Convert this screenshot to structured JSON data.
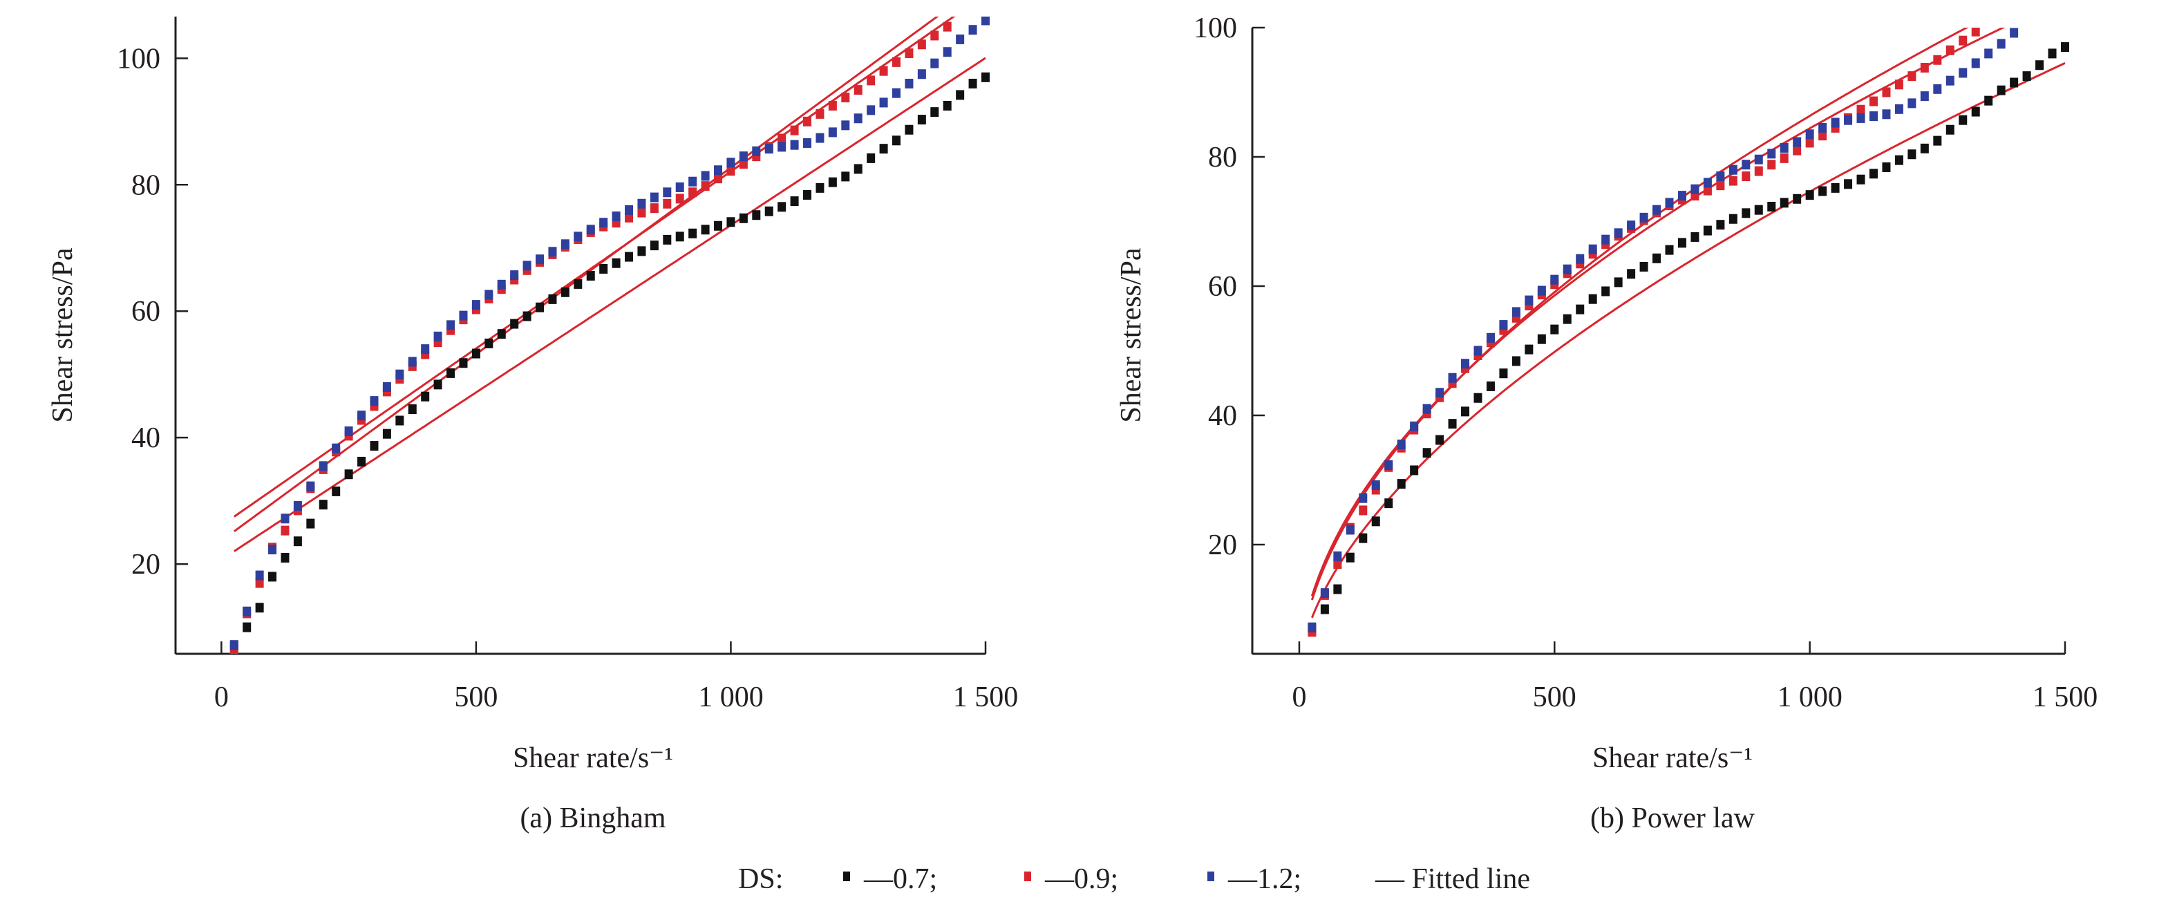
{
  "legend": {
    "prefix": "DS:",
    "items": [
      {
        "label": "—0.7;",
        "color": "#111111",
        "marker": "square"
      },
      {
        "label": "—0.9;",
        "color": "#d9262e",
        "marker": "square"
      },
      {
        "label": "—1.2;",
        "color": "#2e3f9e",
        "marker": "square"
      },
      {
        "label": "— Fitted line",
        "color": "#d9262e",
        "marker": "line"
      }
    ]
  },
  "colors": {
    "fit": "#d9262e",
    "axis": "#231f20"
  },
  "chart_data": [
    {
      "type": "scatter",
      "caption": "(a) Bingham",
      "xlabel": "Shear rate/s⁻¹",
      "ylabel": "Shear stress/Pa",
      "xlim": [
        -90,
        1500
      ],
      "ylim": [
        5.8,
        106.6
      ],
      "xticks": [
        0,
        500,
        1000,
        1500
      ],
      "xtick_labels": [
        "0",
        "500",
        "1 000",
        "1 500"
      ],
      "yticks": [
        20,
        40,
        60,
        80,
        100
      ],
      "ytick_labels": [
        "20",
        "40",
        "60",
        "80",
        "100"
      ],
      "grid": false,
      "fits": {
        "model": "linear",
        "curves": [
          {
            "intercept": 20.7,
            "slope": 0.0529
          },
          {
            "intercept": 23.7,
            "slope": 0.059
          },
          {
            "intercept": 26.1,
            "slope": 0.056
          }
        ]
      }
    },
    {
      "type": "scatter",
      "caption": "(b) Power law",
      "xlabel": "Shear rate/s⁻¹",
      "ylabel": "Shear stress/Pa",
      "xlim": [
        -92,
        1500
      ],
      "ylim": [
        3.1,
        100
      ],
      "xticks": [
        0,
        500,
        1000,
        1500
      ],
      "xtick_labels": [
        "0",
        "500",
        "1 000",
        "1 500"
      ],
      "yticks": [
        20,
        40,
        60,
        80,
        100
      ],
      "ytick_labels": [
        "20",
        "40",
        "60",
        "80",
        "100"
      ],
      "grid": false,
      "fits": {
        "model": "power",
        "curves": [
          {
            "K": 1.33,
            "n": 0.583
          },
          {
            "K": 1.96,
            "n": 0.548
          },
          {
            "K": 2.2,
            "n": 0.528
          }
        ]
      }
    }
  ],
  "series": [
    {
      "name": "0.7",
      "color": "#111111",
      "y": [
        7.0,
        10,
        13.1,
        18,
        21,
        23.6,
        26.4,
        29.4,
        31.5,
        34.2,
        36.2,
        38.7,
        40.6,
        42.7,
        44.5,
        46.5,
        48.4,
        50.2,
        51.8,
        53.3,
        54.9,
        56.4,
        58,
        59.2,
        60.6,
        61.9,
        63,
        64.3,
        65.6,
        66.7,
        67.6,
        68.6,
        69.5,
        70.4,
        71.3,
        71.8,
        72.3,
        72.9,
        73.5,
        74.1,
        74.7,
        75.2,
        75.8,
        76.5,
        77.4,
        78.4,
        79.5,
        80.4,
        81.3,
        82.5,
        84.2,
        85.7,
        87,
        88.7,
        90.3,
        91.5,
        92.5,
        94.2,
        96,
        97
      ]
    },
    {
      "name": "0.9",
      "color": "#d9262e",
      "y": [
        6.5,
        12.2,
        17,
        22.6,
        25.3,
        28.5,
        32,
        35,
        37.8,
        40.3,
        42.8,
        45,
        47.3,
        49.3,
        51.3,
        53.2,
        55.1,
        57,
        58.7,
        60.3,
        62,
        63.5,
        65,
        66.5,
        67.8,
        69,
        70.2,
        71.4,
        72.5,
        73.4,
        74,
        74.8,
        75.6,
        76.3,
        77,
        77.8,
        78.8,
        79.8,
        81,
        82.2,
        83.3,
        84.5,
        86,
        87.3,
        88.6,
        90,
        91.2,
        92.5,
        93.8,
        95,
        96.5,
        98,
        99.4,
        100.8,
        102.2,
        103.6,
        105
      ]
    },
    {
      "name": "1.2",
      "color": "#2e3f9e",
      "y": [
        7.2,
        12.5,
        18.2,
        22.3,
        27.2,
        29.2,
        32.3,
        35.5,
        38.3,
        41,
        43.5,
        45.8,
        48,
        50,
        52,
        54,
        56,
        57.8,
        59.3,
        61,
        62.6,
        64.2,
        65.7,
        67.2,
        68.2,
        69.4,
        70.6,
        71.8,
        72.9,
        74,
        75,
        76,
        77,
        78,
        78.8,
        79.6,
        80.5,
        81.4,
        82.3,
        83.5,
        84.5,
        85.3,
        85.7,
        86,
        86.3,
        86.6,
        87.4,
        88.3,
        89.4,
        90.5,
        91.8,
        93,
        94.5,
        96,
        97.5,
        99.2,
        101,
        103,
        104.5,
        106
      ]
    }
  ],
  "x_step": 25
}
